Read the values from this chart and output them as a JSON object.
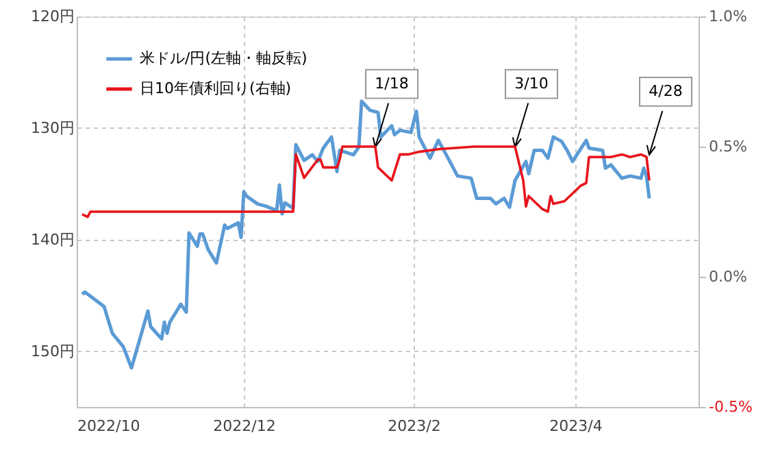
{
  "chart_data": {
    "type": "line",
    "xlim": [
      "2022-10-01",
      "2023-05-16"
    ],
    "xticks": [
      {
        "value": "2022-10-01",
        "label": "2022/10"
      },
      {
        "value": "2022-12-01",
        "label": "2022/12"
      },
      {
        "value": "2023-02-01",
        "label": "2023/2"
      },
      {
        "value": "2023-04-01",
        "label": "2023/4"
      }
    ],
    "ylim": [
      155,
      120
    ],
    "yticks": [
      {
        "value": 120,
        "label": "120円"
      },
      {
        "value": 130,
        "label": "130円"
      },
      {
        "value": 140,
        "label": "140円"
      },
      {
        "value": 150,
        "label": "150円"
      }
    ],
    "y2lim": [
      -0.5,
      1.0
    ],
    "y2ticks": [
      {
        "value": -0.5,
        "label": "-0.5%"
      },
      {
        "value": 0.0,
        "label": "0.0%"
      },
      {
        "value": 0.5,
        "label": "0.5%"
      },
      {
        "value": 1.0,
        "label": "1.0%"
      }
    ],
    "grid": true,
    "legend": "top left",
    "series": [
      {
        "name": "米ドル/円(左軸・軸反転)",
        "color": "#5b9bd5",
        "x": [
          "2022-10-03",
          "2022-10-04",
          "2022-10-11",
          "2022-10-14",
          "2022-10-18",
          "2022-10-21",
          "2022-10-27",
          "2022-10-28",
          "2022-11-01",
          "2022-11-02",
          "2022-11-03",
          "2022-11-04",
          "2022-11-08",
          "2022-11-10",
          "2022-11-11",
          "2022-11-14",
          "2022-11-15",
          "2022-11-16",
          "2022-11-18",
          "2022-11-21",
          "2022-11-24",
          "2022-11-25",
          "2022-11-29",
          "2022-11-30",
          "2022-12-01",
          "2022-12-02",
          "2022-12-06",
          "2022-12-09",
          "2022-12-13",
          "2022-12-14",
          "2022-12-15",
          "2022-12-16",
          "2022-12-19",
          "2022-12-20",
          "2022-12-23",
          "2022-12-26",
          "2022-12-28",
          "2022-12-30",
          "2023-01-02",
          "2023-01-04",
          "2023-01-05",
          "2023-01-10",
          "2023-01-12",
          "2023-01-13",
          "2023-01-16",
          "2023-01-19",
          "2023-01-20",
          "2023-01-24",
          "2023-01-25",
          "2023-01-27",
          "2023-01-31",
          "2023-02-02",
          "2023-02-03",
          "2023-02-07",
          "2023-02-10",
          "2023-02-14",
          "2023-02-17",
          "2023-02-22",
          "2023-02-24",
          "2023-03-01",
          "2023-03-03",
          "2023-03-06",
          "2023-03-08",
          "2023-03-10",
          "2023-03-14",
          "2023-03-15",
          "2023-03-17",
          "2023-03-20",
          "2023-03-22",
          "2023-03-24",
          "2023-03-27",
          "2023-03-29",
          "2023-03-31",
          "2023-04-05",
          "2023-04-06",
          "2023-04-11",
          "2023-04-12",
          "2023-04-14",
          "2023-04-18",
          "2023-04-21",
          "2023-04-25",
          "2023-04-26",
          "2023-04-27",
          "2023-04-28"
        ],
        "values": [
          144.9,
          144.7,
          146.0,
          148.4,
          149.6,
          151.5,
          146.4,
          147.8,
          148.9,
          147.4,
          148.4,
          147.4,
          145.8,
          146.5,
          139.4,
          140.6,
          139.5,
          139.5,
          140.9,
          142.1,
          138.7,
          139.0,
          138.5,
          139.8,
          135.7,
          136.1,
          136.8,
          137.0,
          137.4,
          135.1,
          137.7,
          136.7,
          137.2,
          131.5,
          132.9,
          132.4,
          133.0,
          131.8,
          130.8,
          133.9,
          132.0,
          132.4,
          131.7,
          127.6,
          128.4,
          128.6,
          130.8,
          129.8,
          130.6,
          130.2,
          130.4,
          128.5,
          130.8,
          132.7,
          131.1,
          132.9,
          134.3,
          134.5,
          136.3,
          136.3,
          136.8,
          136.3,
          137.1,
          134.7,
          133.0,
          134.1,
          132.0,
          132.0,
          132.7,
          130.8,
          131.2,
          132.0,
          133.0,
          131.1,
          131.8,
          132.0,
          133.6,
          133.3,
          134.5,
          134.3,
          134.5,
          133.6,
          134.3,
          136.3
        ]
      },
      {
        "name": "日10年債利回り(右軸)",
        "color": "#e8141c",
        "axis": "y2",
        "x": [
          "2022-10-03",
          "2022-10-05",
          "2022-10-06",
          "2022-11-01",
          "2022-12-01",
          "2022-12-19",
          "2022-12-20",
          "2022-12-23",
          "2022-12-28",
          "2022-12-29",
          "2022-12-30",
          "2023-01-04",
          "2023-01-05",
          "2023-01-06",
          "2023-01-18",
          "2023-01-19",
          "2023-01-24",
          "2023-01-27",
          "2023-01-30",
          "2023-02-03",
          "2023-02-10",
          "2023-02-23",
          "2023-03-06",
          "2023-03-10",
          "2023-03-13",
          "2023-03-14",
          "2023-03-15",
          "2023-03-20",
          "2023-03-22",
          "2023-03-23",
          "2023-03-24",
          "2023-03-28",
          "2023-03-30",
          "2023-04-03",
          "2023-04-05",
          "2023-04-06",
          "2023-04-12",
          "2023-04-14",
          "2023-04-18",
          "2023-04-21",
          "2023-04-25",
          "2023-04-27",
          "2023-04-28"
        ],
        "values": [
          0.24,
          0.23,
          0.25,
          0.25,
          0.25,
          0.25,
          0.47,
          0.38,
          0.45,
          0.45,
          0.42,
          0.42,
          0.45,
          0.5,
          0.5,
          0.42,
          0.37,
          0.47,
          0.47,
          0.48,
          0.49,
          0.5,
          0.5,
          0.5,
          0.37,
          0.27,
          0.31,
          0.26,
          0.25,
          0.31,
          0.28,
          0.29,
          0.31,
          0.35,
          0.36,
          0.46,
          0.46,
          0.46,
          0.47,
          0.46,
          0.47,
          0.46,
          0.37
        ]
      }
    ],
    "annotations": [
      {
        "text": "1/18",
        "x": "2023-01-18",
        "y": 131.7
      },
      {
        "text": "3/10",
        "x": "2023-03-10",
        "y": 131.7
      },
      {
        "text": "4/28",
        "x": "2023-04-28",
        "y": 132.4
      }
    ]
  }
}
